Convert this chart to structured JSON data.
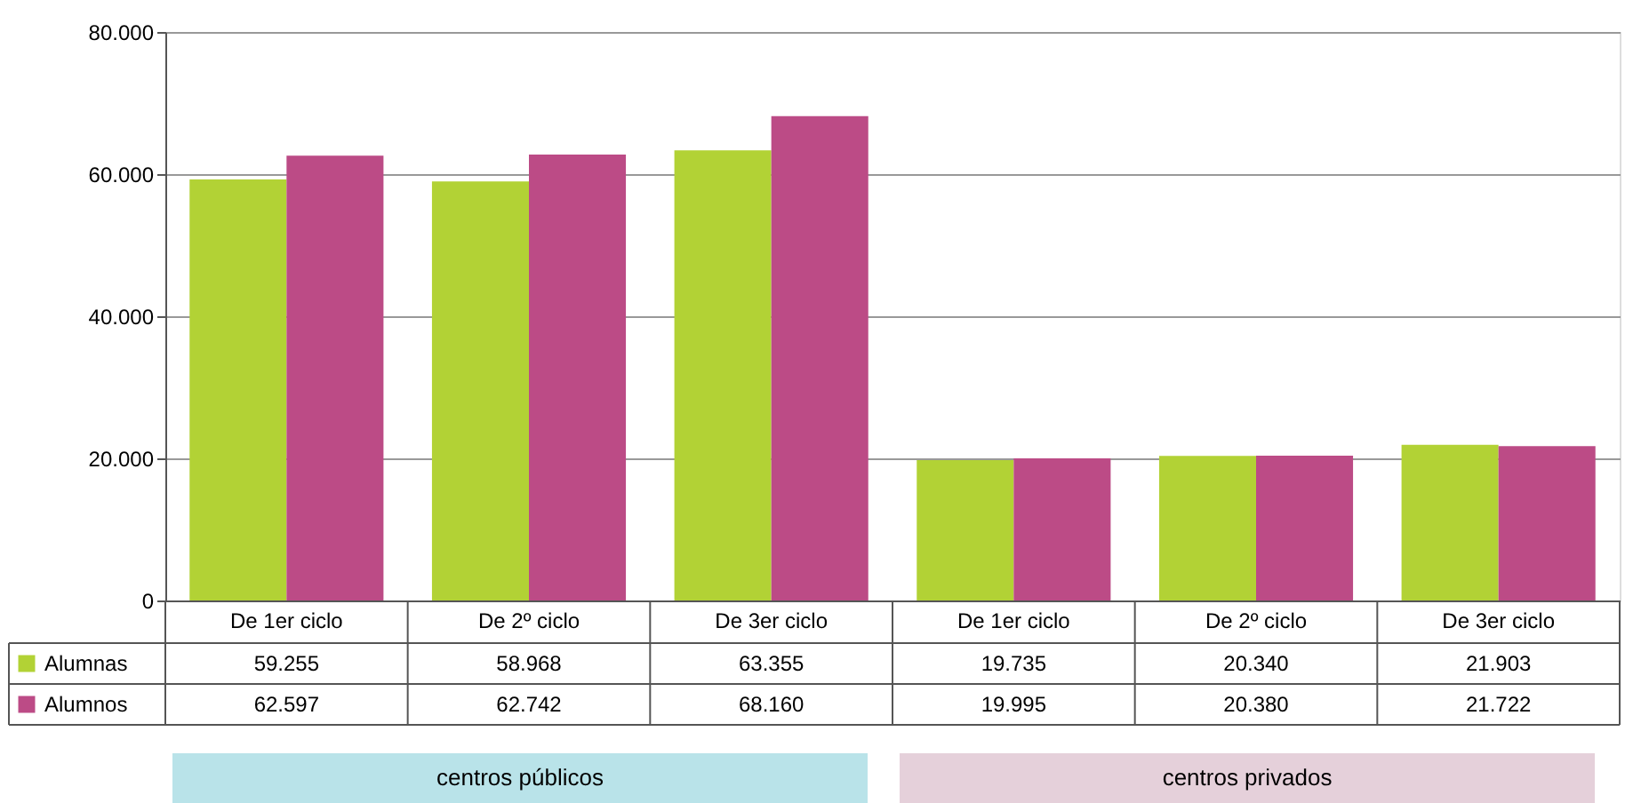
{
  "chart_data": {
    "type": "bar",
    "categories": [
      "De 1er ciclo",
      "De 2º ciclo",
      "De 3er ciclo",
      "De 1er ciclo",
      "De 2º ciclo",
      "De 3er ciclo"
    ],
    "series": [
      {
        "name": "Alumnas",
        "color": "#b2d235",
        "values": [
          59255,
          58968,
          63355,
          19735,
          20340,
          21903
        ],
        "value_labels": [
          "59.255",
          "58.968",
          "63.355",
          "19.735",
          "20.340",
          "21.903"
        ]
      },
      {
        "name": "Alumnos",
        "color": "#bc4b86",
        "values": [
          62597,
          62742,
          68160,
          19995,
          20380,
          21722
        ],
        "value_labels": [
          "62.597",
          "62.742",
          "68.160",
          "19.995",
          "20.380",
          "21.722"
        ]
      }
    ],
    "ylim": [
      0,
      80000
    ],
    "yticks": [
      {
        "value": 0,
        "label": "0"
      },
      {
        "value": 20000,
        "label": "20.000"
      },
      {
        "value": 40000,
        "label": "40.000"
      },
      {
        "value": 60000,
        "label": "60.000"
      },
      {
        "value": 80000,
        "label": "80.000"
      }
    ],
    "grid": "y",
    "legend": "bottom left",
    "annotations": [
      "centros públicos",
      "centros privados"
    ]
  }
}
